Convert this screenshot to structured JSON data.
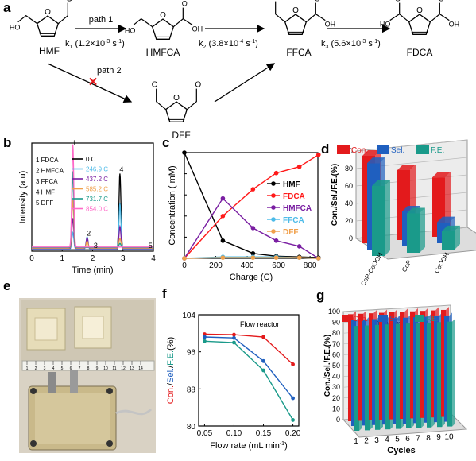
{
  "panel_letters": [
    "a",
    "b",
    "c",
    "d",
    "e",
    "f",
    "g"
  ],
  "scheme": {
    "molecules": [
      "HMF",
      "HMFCA",
      "FFCA",
      "FDCA",
      "DFF"
    ],
    "path1_label": "path 1",
    "path2_label": "path 2",
    "rates": [
      {
        "k": "k",
        "sub": "1",
        "value": "(1.2×10",
        "exp": "-3",
        "unit": " s",
        "uexp": "-1",
        "close": ")"
      },
      {
        "k": "k",
        "sub": "2",
        "value": "(3.8×10",
        "exp": "-4",
        "unit": " s",
        "uexp": "-1",
        "close": ")"
      },
      {
        "k": "k",
        "sub": "3",
        "value": "(5.6×10",
        "exp": "-3",
        "unit": " s",
        "uexp": "-1",
        "close": ")"
      }
    ],
    "atoms": {
      "oh": "OH",
      "ho": "HO",
      "o": "O"
    },
    "blocked_mark": "✕"
  },
  "chart_data": [
    {
      "id": "b",
      "type": "line",
      "xlabel": "Time (min)",
      "ylabel": "Intensity (a.u)",
      "xlim": [
        0,
        4
      ],
      "xticks": [
        0,
        1,
        2,
        3,
        4
      ],
      "peak_labels": [
        {
          "text": "1",
          "x": 1.35
        },
        {
          "text": "2",
          "x": 1.82
        },
        {
          "text": "3",
          "x": 2.05
        },
        {
          "text": "4",
          "x": 2.9
        },
        {
          "text": "5",
          "x": 3.85
        }
      ],
      "compound_legend": [
        "1 FDCA",
        "2 HMFCA",
        "3 FFCA",
        "4 HMF",
        "5 DFF"
      ],
      "series": [
        {
          "name": "0 C",
          "color": "#000000",
          "peaks": [
            [
              2.9,
              0.55
            ]
          ]
        },
        {
          "name": "246.9 C",
          "color": "#4dbbe8",
          "peaks": [
            [
              1.35,
              0.12
            ],
            [
              1.82,
              0.09
            ],
            [
              2.9,
              0.33
            ]
          ]
        },
        {
          "name": "437.2 C",
          "color": "#7a1fa2",
          "peaks": [
            [
              1.35,
              0.22
            ],
            [
              1.82,
              0.08
            ],
            [
              2.9,
              0.16
            ]
          ]
        },
        {
          "name": "585.2 C",
          "color": "#f0a04b",
          "peaks": [
            [
              1.35,
              0.35
            ],
            [
              1.82,
              0.05
            ],
            [
              2.9,
              0.07
            ]
          ]
        },
        {
          "name": "731.7 C",
          "color": "#1a9a8a",
          "peaks": [
            [
              1.35,
              0.55
            ],
            [
              2.9,
              0.03
            ]
          ]
        },
        {
          "name": "854.0 C",
          "color": "#ff69c8",
          "peaks": [
            [
              1.35,
              0.74
            ]
          ]
        }
      ]
    },
    {
      "id": "c",
      "type": "line",
      "xlabel": "Charge (C)",
      "ylabel": "Concentration ( mM)",
      "xlim": [
        0,
        850
      ],
      "ylim": [
        0,
        150
      ],
      "xticks": [
        0,
        200,
        400,
        600,
        800
      ],
      "yticks": [
        0,
        30,
        60,
        90,
        120,
        150
      ],
      "x": [
        0,
        245,
        437,
        585,
        732,
        854
      ],
      "series": [
        {
          "name": "HMF",
          "color": "#000000",
          "values": [
            150,
            25,
            7,
            3,
            2,
            1
          ]
        },
        {
          "name": "FDCA",
          "color": "#ff1a1a",
          "values": [
            0,
            60,
            98,
            121,
            130,
            147
          ]
        },
        {
          "name": "HMFCA",
          "color": "#7a1fa2",
          "values": [
            0,
            85,
            43,
            25,
            17,
            0
          ]
        },
        {
          "name": "FFCA",
          "color": "#4dbbe8",
          "values": [
            0,
            2,
            2,
            2,
            1,
            0
          ]
        },
        {
          "name": "DFF",
          "color": "#f0a04b",
          "values": [
            0,
            1,
            1,
            1,
            1,
            0
          ]
        }
      ]
    },
    {
      "id": "d",
      "type": "bar",
      "ylabel": "Con./Sel./F.E.(%)",
      "ylim": [
        0,
        100
      ],
      "yticks": [
        0,
        20,
        40,
        60,
        80,
        100
      ],
      "categories": [
        "CoP-CoOOH",
        "CoP",
        "CoOOH"
      ],
      "series": [
        {
          "name": "Con.",
          "color": "#e31a1c",
          "values": [
            100,
            80,
            68
          ]
        },
        {
          "name": "Sel.",
          "color": "#1f5fbf",
          "values": [
            99,
            40,
            24
          ]
        },
        {
          "name": "F.E.",
          "color": "#1a9a8a",
          "values": [
            80,
            45,
            21
          ]
        }
      ]
    },
    {
      "id": "f",
      "type": "line",
      "xlabel": "Flow rate (mL min",
      "xlabel_exp": "-1",
      "xlabel_close": ")",
      "ylabel_parts": [
        "Con.",
        "/",
        "Sel.",
        "/",
        "F.E.",
        "(%)"
      ],
      "annotation": "Flow reactor",
      "xlim": [
        0.04,
        0.21
      ],
      "ylim": [
        80,
        104
      ],
      "xticks": [
        0.05,
        0.1,
        0.15,
        0.2
      ],
      "yticks": [
        80,
        88,
        96,
        104
      ],
      "x": [
        0.05,
        0.1,
        0.15,
        0.2
      ],
      "series": [
        {
          "name": "Con.",
          "color": "#e31a1c",
          "values": [
            99.8,
            99.7,
            99.2,
            93.3
          ]
        },
        {
          "name": "Sel.",
          "color": "#1f5fbf",
          "values": [
            99.2,
            99.0,
            94.0,
            86.0
          ]
        },
        {
          "name": "F.E.",
          "color": "#1a9a8a",
          "values": [
            98.3,
            98.0,
            92.0,
            81.3
          ]
        }
      ]
    },
    {
      "id": "g",
      "type": "bar",
      "xlabel": "Cycles",
      "ylabel": "Con./Sel./F.E.(%)",
      "annotation": "0.1 mL/min",
      "ylim": [
        0,
        100
      ],
      "yticks": [
        0,
        10,
        20,
        30,
        40,
        50,
        60,
        70,
        80,
        90,
        100
      ],
      "categories": [
        "1",
        "2",
        "3",
        "4",
        "5",
        "6",
        "7",
        "8",
        "9",
        "10"
      ],
      "series": [
        {
          "name": "Con.",
          "color": "#e31a1c",
          "values": [
            99,
            99,
            99,
            99,
            99,
            99,
            99,
            99,
            99,
            99
          ]
        },
        {
          "name": "Sel.",
          "color": "#1f5fbf",
          "values": [
            98,
            98,
            98,
            98,
            98,
            98,
            98,
            98,
            98,
            98
          ]
        },
        {
          "name": "F.E.",
          "color": "#1a9a8a",
          "values": [
            97,
            97,
            97,
            97,
            97,
            97,
            97,
            97,
            97,
            97
          ]
        }
      ]
    }
  ],
  "photo": {
    "ruler_numbers": [
      "1",
      "2",
      "3",
      "4",
      "5",
      "6",
      "7",
      "8",
      "9",
      "10",
      "11",
      "12",
      "13",
      "14"
    ]
  }
}
